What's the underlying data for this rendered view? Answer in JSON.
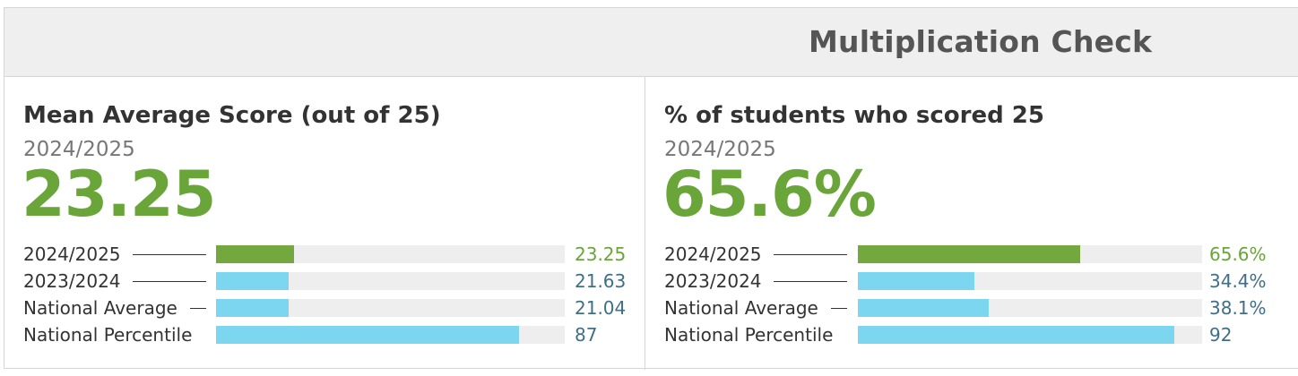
{
  "header": {
    "title": "Multiplication Check"
  },
  "colors": {
    "current_bar": "#72a83e",
    "comparison_bar": "#7dd6f0",
    "accent_text": "#6aa53a",
    "value_text": "#3f6f86"
  },
  "cards": [
    {
      "title": "Mean Average Score (out of 25)",
      "year": "2024/2025",
      "big_value": "23.25",
      "rows": [
        {
          "label": "2024/2025",
          "value": "23.25",
          "level": 0.224,
          "current": true
        },
        {
          "label": "2023/2024",
          "value": "21.63",
          "level": 0.209,
          "current": false
        },
        {
          "label": "National Average",
          "value": "21.04",
          "level": 0.209,
          "current": false
        },
        {
          "label": "National Percentile",
          "value": "87",
          "level": 0.87,
          "current": false
        }
      ]
    },
    {
      "title": "% of students who scored 25",
      "year": "2024/2025",
      "big_value": "65.6%",
      "rows": [
        {
          "label": "2024/2025",
          "value": "65.6%",
          "level": 0.646,
          "current": true
        },
        {
          "label": "2023/2024",
          "value": "34.4%",
          "level": 0.338,
          "current": false
        },
        {
          "label": "National Average",
          "value": "38.1%",
          "level": 0.38,
          "current": false
        },
        {
          "label": "National Percentile",
          "value": "92",
          "level": 0.92,
          "current": false
        }
      ]
    }
  ]
}
